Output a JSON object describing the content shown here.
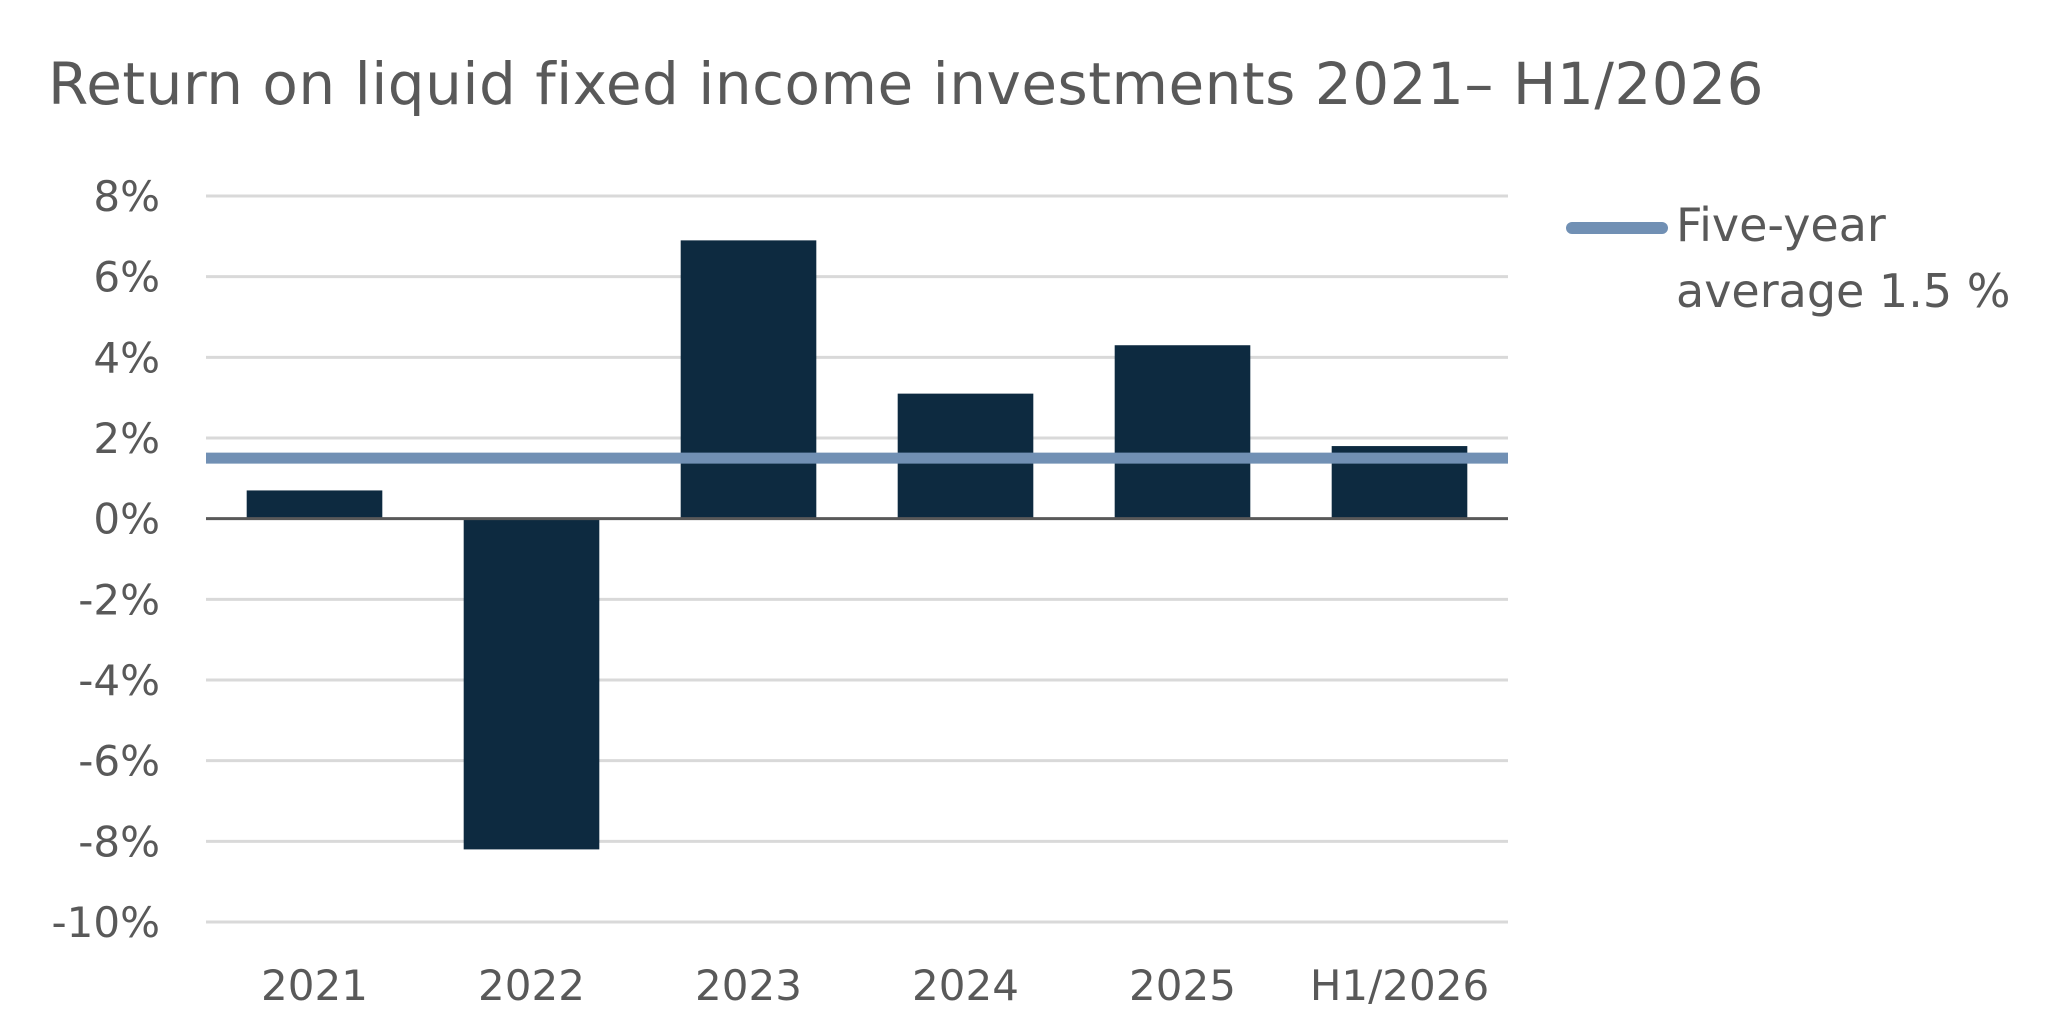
{
  "chart_data": {
    "type": "bar",
    "title": "Return on liquid fixed income investments 2021– H1/2026",
    "xlabel": "",
    "ylabel": "",
    "categories": [
      "2021",
      "2022",
      "2023",
      "2024",
      "2025",
      "H1/2026"
    ],
    "values": [
      0.7,
      -8.2,
      6.9,
      3.1,
      4.3,
      1.8
    ],
    "ylim": [
      -10,
      8
    ],
    "yticks": [
      8,
      6,
      4,
      2,
      0,
      -2,
      -4,
      -6,
      -8,
      -10
    ],
    "ytick_labels": [
      "8%",
      "6%",
      "4%",
      "2%",
      "0%",
      "-2%",
      "-4%",
      "-6%",
      "-8%",
      "-10%"
    ],
    "reference_line": {
      "name": "Five-year average 1.5 %",
      "value": 1.5
    },
    "grid": true,
    "legend_position": "right",
    "colors": {
      "bar": "#0d2a40",
      "average_line": "#7190b4",
      "grid": "#d9d9d9",
      "zero_axis": "#595959",
      "text": "#595959"
    }
  }
}
